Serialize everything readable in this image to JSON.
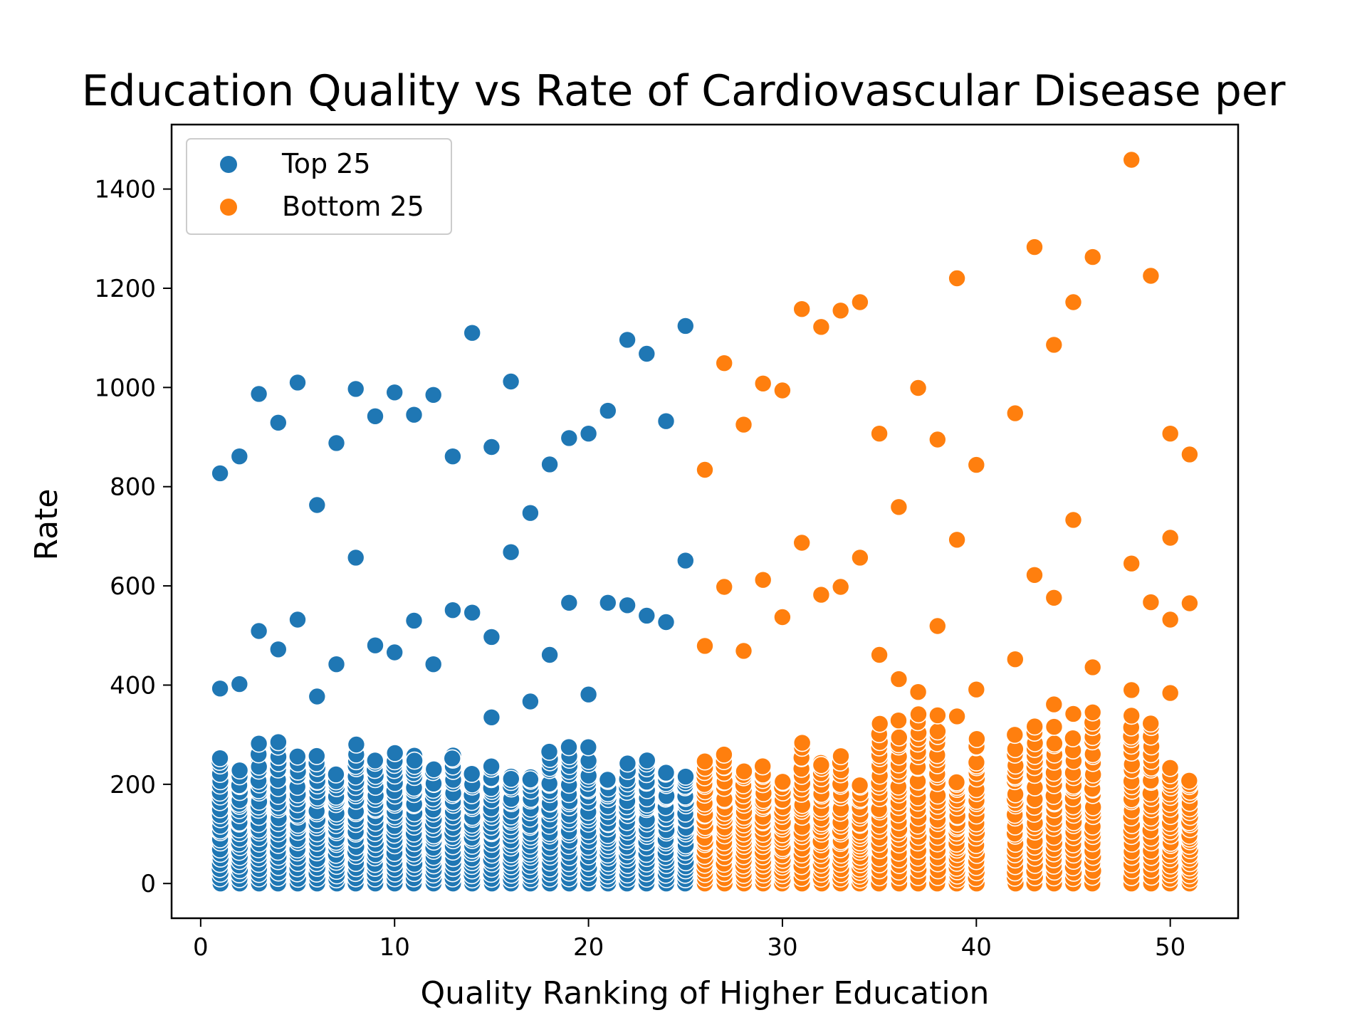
{
  "chart_data": {
    "type": "scatter",
    "title": "Education Quality vs Rate of Cardiovascular Disease per",
    "xlabel": "Quality Ranking of Higher Education",
    "ylabel": "Rate",
    "xlim": [
      -1.5,
      53.5
    ],
    "ylim": [
      -70,
      1530
    ],
    "x_ticks": [
      0,
      10,
      20,
      30,
      40,
      50
    ],
    "y_ticks": [
      0,
      200,
      400,
      600,
      800,
      1000,
      1200,
      1400
    ],
    "grid": false,
    "legend_position": "top-left",
    "series": [
      {
        "name": "Top 25",
        "color": "#1f77b4",
        "x": [
          1,
          1,
          2,
          2,
          3,
          3,
          3,
          4,
          4,
          5,
          5,
          6,
          6,
          7,
          7,
          8,
          8,
          9,
          9,
          10,
          10,
          11,
          11,
          12,
          12,
          13,
          13,
          14,
          14,
          15,
          15,
          15,
          16,
          16,
          17,
          17,
          18,
          18,
          19,
          19,
          20,
          20,
          21,
          21,
          22,
          22,
          23,
          23,
          24,
          24,
          25,
          25
        ],
        "y": [
          827,
          393,
          861,
          402,
          987,
          509,
          282,
          929,
          472,
          1010,
          532,
          763,
          377,
          888,
          442,
          997,
          657,
          942,
          480,
          990,
          466,
          945,
          530,
          985,
          442,
          861,
          551,
          1110,
          546,
          880,
          497,
          335,
          1012,
          668,
          747,
          367,
          845,
          461,
          898,
          566,
          907,
          381,
          953,
          566,
          1096,
          561,
          1068,
          540,
          932,
          527,
          1124,
          651
        ]
      },
      {
        "name": "Bottom 25",
        "color": "#ff7f0e",
        "x": [
          26,
          26,
          27,
          27,
          28,
          28,
          29,
          29,
          30,
          30,
          31,
          31,
          32,
          32,
          33,
          33,
          34,
          34,
          35,
          35,
          36,
          36,
          37,
          37,
          38,
          38,
          39,
          39,
          39,
          40,
          40,
          42,
          42,
          43,
          43,
          44,
          44,
          44,
          45,
          45,
          45,
          46,
          46,
          46,
          48,
          48,
          48,
          49,
          49,
          50,
          50,
          50,
          50,
          51,
          51
        ],
        "y": [
          834,
          479,
          1049,
          598,
          925,
          469,
          1008,
          612,
          994,
          537,
          1158,
          687,
          1122,
          582,
          1155,
          598,
          1172,
          657,
          907,
          461,
          759,
          412,
          999,
          386,
          895,
          519,
          1220,
          693,
          337,
          844,
          391,
          948,
          452,
          1283,
          622,
          1086,
          576,
          361,
          1172,
          733,
          342,
          1263,
          436,
          345,
          1459,
          645,
          390,
          1225,
          567,
          907,
          697,
          532,
          384,
          865,
          565
        ]
      }
    ]
  }
}
